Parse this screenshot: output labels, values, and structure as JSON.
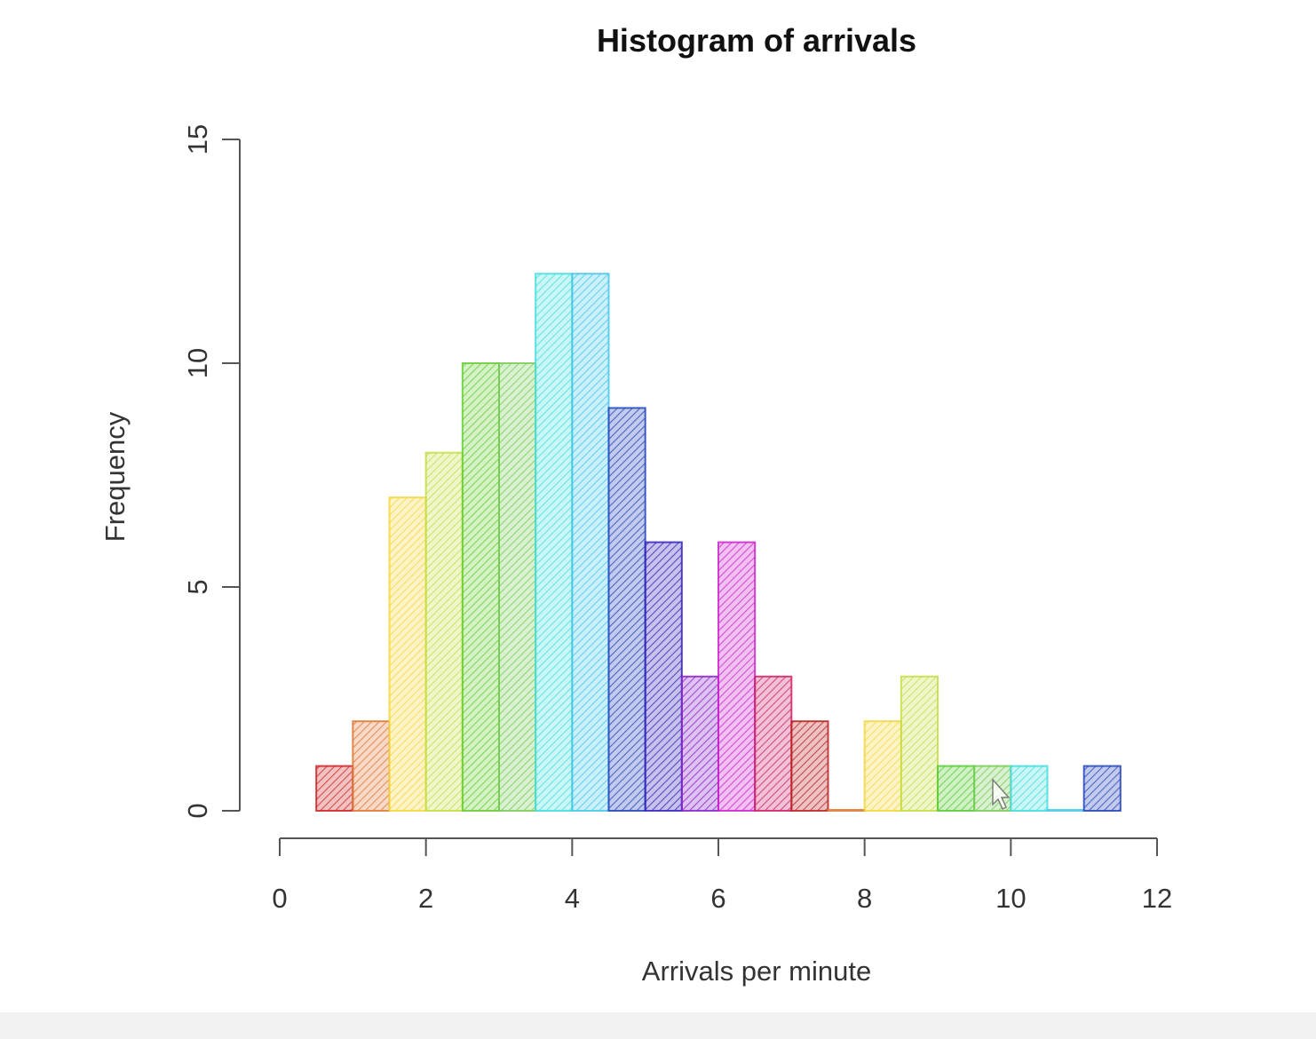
{
  "chart_data": {
    "type": "bar",
    "title": "Histogram of arrivals",
    "xlabel": "Arrivals per minute",
    "ylabel": "Frequency",
    "xlim": [
      0,
      12
    ],
    "ylim": [
      0,
      15
    ],
    "x_ticks": [
      "0",
      "2",
      "4",
      "6",
      "8",
      "10",
      "12"
    ],
    "y_ticks": [
      "0",
      "5",
      "10",
      "15"
    ],
    "bin_width": 0.5,
    "bins": [
      {
        "x0": 0.5,
        "x1": 1.0,
        "count": 1,
        "color": "#cc2222"
      },
      {
        "x0": 1.0,
        "x1": 1.5,
        "count": 2,
        "color": "#dd7733"
      },
      {
        "x0": 1.5,
        "x1": 2.0,
        "count": 7,
        "color": "#f2d63a"
      },
      {
        "x0": 2.0,
        "x1": 2.5,
        "count": 8,
        "color": "#c4dd44"
      },
      {
        "x0": 2.5,
        "x1": 3.0,
        "count": 10,
        "color": "#66cc33"
      },
      {
        "x0": 3.0,
        "x1": 3.5,
        "count": 10,
        "color": "#77cc55"
      },
      {
        "x0": 3.5,
        "x1": 4.0,
        "count": 12,
        "color": "#44dddd"
      },
      {
        "x0": 4.0,
        "x1": 4.5,
        "count": 12,
        "color": "#44c8e8"
      },
      {
        "x0": 4.5,
        "x1": 5.0,
        "count": 9,
        "color": "#2244bb"
      },
      {
        "x0": 5.0,
        "x1": 5.5,
        "count": 6,
        "color": "#3322bb"
      },
      {
        "x0": 5.5,
        "x1": 6.0,
        "count": 3,
        "color": "#8822cc"
      },
      {
        "x0": 6.0,
        "x1": 6.5,
        "count": 6,
        "color": "#cc22cc"
      },
      {
        "x0": 6.5,
        "x1": 7.0,
        "count": 3,
        "color": "#cc2266"
      },
      {
        "x0": 7.0,
        "x1": 7.5,
        "count": 2,
        "color": "#bb2222"
      },
      {
        "x0": 7.5,
        "x1": 8.0,
        "count": 0,
        "color": "#dd7733"
      },
      {
        "x0": 8.0,
        "x1": 8.5,
        "count": 2,
        "color": "#f2d63a"
      },
      {
        "x0": 8.5,
        "x1": 9.0,
        "count": 3,
        "color": "#c4dd44"
      },
      {
        "x0": 9.0,
        "x1": 9.5,
        "count": 1,
        "color": "#55cc33"
      },
      {
        "x0": 9.5,
        "x1": 10.0,
        "count": 1,
        "color": "#77cc55"
      },
      {
        "x0": 10.0,
        "x1": 10.5,
        "count": 1,
        "color": "#44dddd"
      },
      {
        "x0": 10.5,
        "x1": 11.0,
        "count": 0,
        "color": "#44c8e8"
      },
      {
        "x0": 11.0,
        "x1": 11.5,
        "count": 1,
        "color": "#2244bb"
      }
    ]
  }
}
